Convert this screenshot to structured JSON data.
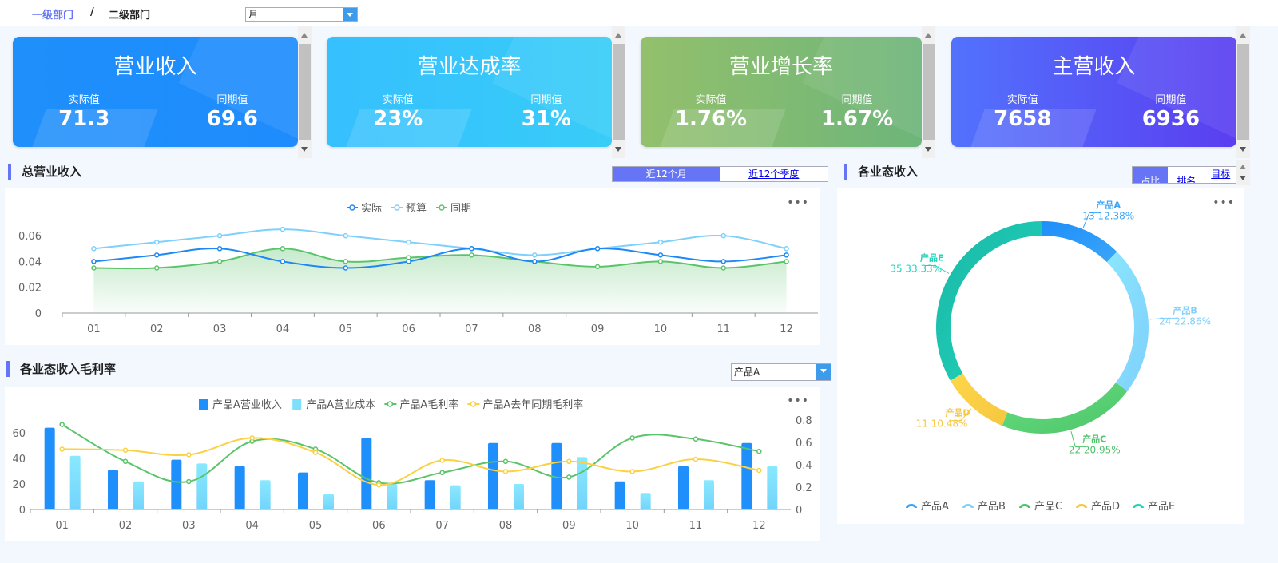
{
  "header": {
    "breadcrumb": [
      "一级部门",
      "/",
      "二级部门"
    ],
    "period_select": "月"
  },
  "cards": [
    {
      "title": "营业收入",
      "actual_label": "实际值",
      "actual": "71.3",
      "prior_label": "同期值",
      "prior": "69.6",
      "colors": [
        "#1e8ffb",
        "#1f8cfd"
      ]
    },
    {
      "title": "营业达成率",
      "actual_label": "实际值",
      "actual": "23%",
      "prior_label": "同期值",
      "prior": "31%",
      "colors": [
        "#36c0fe",
        "#38ccf8"
      ]
    },
    {
      "title": "营业增长率",
      "actual_label": "实际值",
      "actual": "1.76%",
      "prior_label": "同期值",
      "prior": "1.67%",
      "colors": [
        "#93c06c",
        "#6db57a"
      ]
    },
    {
      "title": "主营收入",
      "actual_label": "实际值",
      "actual": "7658",
      "prior_label": "同期值",
      "prior": "6936",
      "colors": [
        "#5272fd",
        "#5a3ef0"
      ]
    }
  ],
  "revenue": {
    "title": "总营业收入",
    "tabs": [
      "近12个月",
      "近12个季度"
    ],
    "active_tab": 0,
    "more": "•••"
  },
  "margin": {
    "title": "各业态收入毛利率",
    "product_select": "产品A",
    "more": "•••"
  },
  "segments": {
    "title": "各业态收入",
    "tabs": [
      "占比",
      "排名",
      "目标"
    ],
    "active_tab": 0,
    "more": "•••"
  },
  "chart_data": [
    {
      "type": "line",
      "categories": [
        "01",
        "02",
        "03",
        "04",
        "05",
        "06",
        "07",
        "08",
        "09",
        "10",
        "11",
        "12"
      ],
      "ylim": [
        0,
        0.07
      ],
      "yticks": [
        "0",
        "0.02",
        "0.04",
        "0.06"
      ],
      "legend_position": "top",
      "series": [
        {
          "name": "实际",
          "color": "#1e88f5",
          "values": [
            0.04,
            0.045,
            0.05,
            0.04,
            0.035,
            0.04,
            0.05,
            0.04,
            0.05,
            0.045,
            0.04,
            0.045
          ]
        },
        {
          "name": "预算",
          "color": "#7fd0fb",
          "values": [
            0.05,
            0.055,
            0.06,
            0.065,
            0.06,
            0.055,
            0.05,
            0.045,
            0.05,
            0.055,
            0.06,
            0.05
          ]
        },
        {
          "name": "同期",
          "color": "#5bc46b",
          "area": true,
          "values": [
            0.035,
            0.035,
            0.04,
            0.05,
            0.04,
            0.043,
            0.045,
            0.04,
            0.036,
            0.04,
            0.035,
            0.04
          ]
        }
      ]
    },
    {
      "type": "bar",
      "categories": [
        "01",
        "02",
        "03",
        "04",
        "05",
        "06",
        "07",
        "08",
        "09",
        "10",
        "11",
        "12"
      ],
      "ylim": [
        0,
        70
      ],
      "yticks": [
        "0",
        "20",
        "40",
        "60"
      ],
      "y2lim": [
        0,
        0.8
      ],
      "y2ticks": [
        "0",
        "0.2",
        "0.4",
        "0.6",
        "0.8"
      ],
      "legend_position": "top",
      "series": [
        {
          "name": "产品A营业收入",
          "kind": "bar",
          "color": "#1e8ffb",
          "values": [
            64,
            31,
            39,
            34,
            29,
            56,
            23,
            52,
            52,
            22,
            34,
            52
          ]
        },
        {
          "name": "产品A营业成本",
          "kind": "bar",
          "color": "#7fe0fd",
          "values": [
            42,
            22,
            36,
            23,
            12,
            20,
            19,
            20,
            41,
            13,
            23,
            34
          ]
        },
        {
          "name": "产品A毛利率",
          "kind": "line",
          "axis": "right",
          "color": "#5bc46b",
          "values": [
            0.76,
            0.43,
            0.25,
            0.61,
            0.54,
            0.24,
            0.33,
            0.43,
            0.29,
            0.64,
            0.63,
            0.52
          ]
        },
        {
          "name": "产品A去年同期毛利率",
          "kind": "line",
          "axis": "right",
          "color": "#fbd143",
          "values": [
            0.54,
            0.53,
            0.49,
            0.64,
            0.51,
            0.22,
            0.44,
            0.34,
            0.43,
            0.34,
            0.45,
            0.35
          ]
        }
      ]
    },
    {
      "type": "pie",
      "donut": true,
      "legend_position": "bottom",
      "slices": [
        {
          "name": "产品A",
          "value": 13,
          "percent": "12.38%",
          "color": "#1e8ffb",
          "color2": "#3aa5f8"
        },
        {
          "name": "产品B",
          "value": 24,
          "percent": "22.86%",
          "color": "#8ae6fd",
          "color2": "#7fd0fb"
        },
        {
          "name": "产品C",
          "value": 22,
          "percent": "20.95%",
          "color": "#66de7e",
          "color2": "#4dc46a"
        },
        {
          "name": "产品D",
          "value": 11,
          "percent": "10.48%",
          "color": "#fdd64a",
          "color2": "#f6c740"
        },
        {
          "name": "产品E",
          "value": 35,
          "percent": "33.33%",
          "color": "#19b8a6",
          "color2": "#22d4bd"
        }
      ]
    }
  ]
}
